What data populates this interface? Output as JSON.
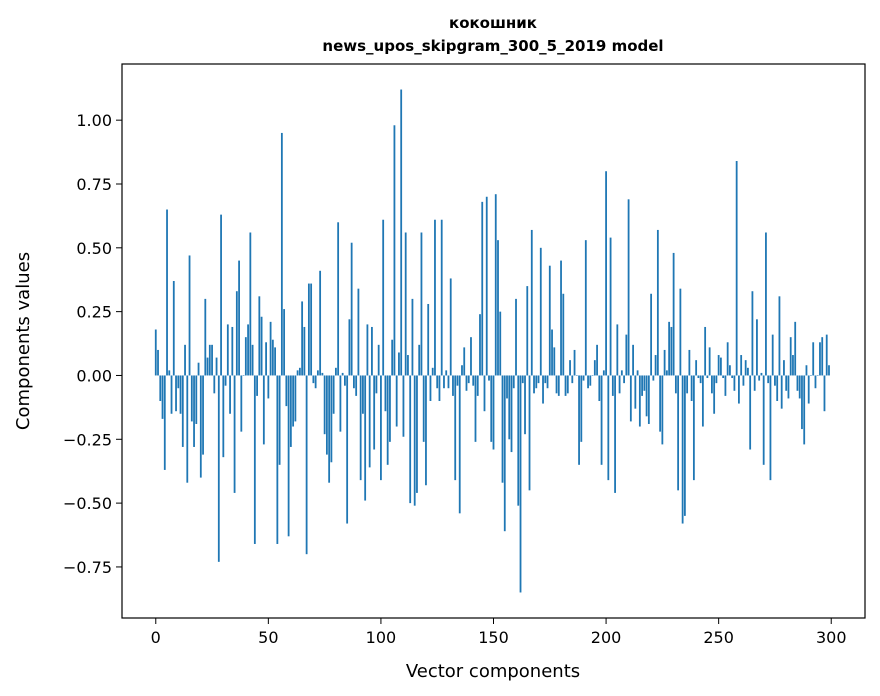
{
  "chart_data": {
    "type": "bar",
    "title": "кокошник",
    "subtitle": "news_upos_skipgram_300_5_2019 model",
    "xlabel": "Vector components",
    "ylabel": "Components values",
    "xlim": [
      -15,
      315
    ],
    "ylim": [
      -0.95,
      1.22
    ],
    "xticks": [
      0,
      50,
      100,
      150,
      200,
      250,
      300
    ],
    "xtick_labels": [
      "0",
      "50",
      "100",
      "150",
      "200",
      "250",
      "300"
    ],
    "yticks": [
      -0.75,
      -0.5,
      -0.25,
      0.0,
      0.25,
      0.5,
      0.75,
      1.0
    ],
    "ytick_labels": [
      "−0.75",
      "−0.50",
      "−0.25",
      "0.00",
      "0.25",
      "0.50",
      "0.75",
      "1.00"
    ],
    "grid": false,
    "bar_color": "#1f77b4",
    "series": [
      {
        "values": [
          0.18,
          0.1,
          -0.1,
          -0.17,
          -0.37,
          0.65,
          0.02,
          -0.15,
          0.37,
          -0.14,
          -0.05,
          -0.15,
          -0.28,
          0.12,
          -0.42,
          0.47,
          -0.18,
          -0.28,
          -0.19,
          0.05,
          -0.4,
          -0.31,
          0.3,
          0.07,
          0.12,
          0.12,
          -0.07,
          0.07,
          -0.73,
          0.63,
          -0.32,
          -0.04,
          0.2,
          -0.15,
          0.19,
          -0.46,
          0.33,
          0.45,
          -0.22,
          0.0,
          0.15,
          0.2,
          0.56,
          0.12,
          -0.66,
          -0.08,
          0.31,
          0.23,
          -0.27,
          0.13,
          -0.09,
          0.21,
          0.14,
          0.11,
          -0.66,
          -0.35,
          0.95,
          0.26,
          -0.12,
          -0.63,
          -0.28,
          -0.2,
          -0.18,
          0.02,
          0.03,
          0.29,
          0.19,
          -0.7,
          0.36,
          0.36,
          -0.03,
          -0.05,
          0.02,
          0.41,
          0.01,
          -0.23,
          -0.31,
          -0.42,
          -0.34,
          -0.15,
          0.03,
          0.6,
          -0.22,
          0.01,
          -0.04,
          -0.58,
          0.22,
          0.52,
          -0.05,
          -0.08,
          0.34,
          -0.41,
          -0.15,
          -0.49,
          0.2,
          -0.36,
          0.19,
          -0.29,
          -0.07,
          0.12,
          -0.41,
          0.61,
          -0.14,
          -0.35,
          -0.26,
          0.14,
          0.98,
          -0.2,
          0.09,
          1.12,
          -0.24,
          0.56,
          0.08,
          -0.5,
          0.3,
          -0.51,
          -0.46,
          0.12,
          0.56,
          -0.26,
          -0.43,
          0.28,
          -0.1,
          0.03,
          0.61,
          -0.05,
          -0.1,
          0.61,
          -0.05,
          0.02,
          -0.05,
          0.38,
          -0.08,
          -0.41,
          -0.04,
          -0.54,
          0.04,
          0.11,
          -0.06,
          -0.03,
          0.15,
          -0.04,
          -0.26,
          -0.08,
          0.24,
          0.68,
          -0.14,
          0.7,
          -0.02,
          -0.26,
          -0.29,
          0.71,
          0.53,
          0.25,
          -0.42,
          -0.61,
          -0.09,
          -0.25,
          -0.3,
          -0.05,
          0.3,
          -0.51,
          -0.85,
          -0.03,
          -0.23,
          0.35,
          -0.45,
          0.57,
          -0.07,
          -0.05,
          -0.03,
          0.5,
          -0.11,
          -0.03,
          -0.05,
          0.43,
          0.18,
          0.11,
          -0.07,
          -0.08,
          0.45,
          0.32,
          -0.08,
          -0.07,
          0.06,
          -0.03,
          0.1,
          0.0,
          -0.35,
          -0.26,
          -0.02,
          0.53,
          -0.05,
          -0.04,
          0.0,
          0.06,
          0.12,
          -0.1,
          -0.35,
          0.02,
          0.8,
          -0.41,
          0.54,
          -0.08,
          -0.46,
          0.2,
          -0.07,
          0.02,
          -0.03,
          0.16,
          0.69,
          -0.18,
          0.12,
          -0.13,
          0.02,
          -0.2,
          -0.08,
          -0.06,
          -0.16,
          -0.19,
          0.32,
          -0.02,
          0.08,
          0.57,
          -0.22,
          -0.27,
          0.1,
          0.02,
          0.21,
          0.19,
          0.48,
          -0.07,
          -0.45,
          0.34,
          -0.58,
          -0.55,
          -0.07,
          0.1,
          -0.1,
          -0.41,
          0.06,
          -0.01,
          -0.03,
          -0.2,
          0.19,
          -0.01,
          0.11,
          -0.07,
          -0.15,
          -0.03,
          0.08,
          0.07,
          -0.01,
          -0.08,
          0.13,
          0.04,
          -0.01,
          -0.06,
          0.84,
          -0.11,
          0.08,
          -0.04,
          0.06,
          0.03,
          -0.29,
          0.33,
          -0.06,
          0.22,
          -0.02,
          0.01,
          -0.35,
          0.56,
          -0.03,
          -0.41,
          0.16,
          -0.04,
          -0.1,
          0.31,
          -0.13,
          0.06,
          -0.06,
          -0.09,
          0.15,
          0.08,
          0.21,
          -0.06,
          -0.09,
          -0.21,
          -0.27,
          0.04,
          -0.11,
          0.0,
          0.13,
          -0.05,
          0.0,
          0.13,
          0.15,
          -0.14,
          0.16,
          0.04
        ]
      }
    ]
  }
}
